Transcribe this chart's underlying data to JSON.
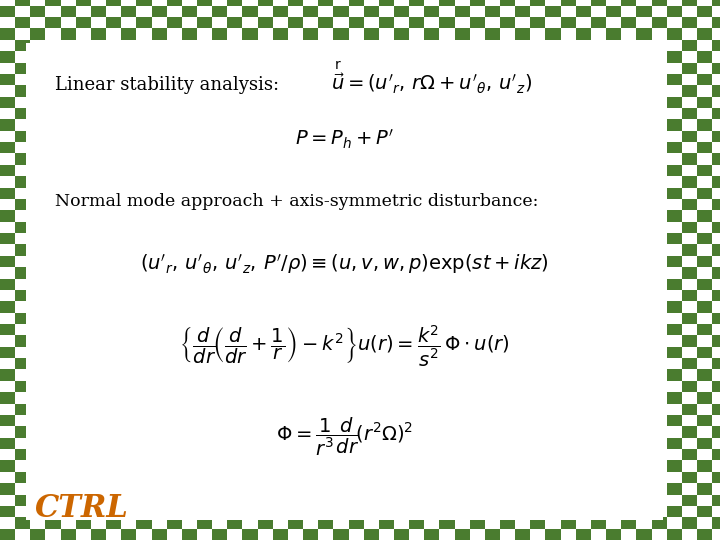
{
  "bg_color": "#ffffff",
  "border_color": "#4a7c2f",
  "title_text": "Linear stability analysis:",
  "subtitle_text": "Normal mode approach + axis-symmetric disturbance:",
  "ctrl_text": "CTRL",
  "ctrl_color": "#cc6600",
  "text_color": "#000000",
  "figsize": [
    7.2,
    5.4
  ],
  "dpi": 100,
  "tile_size": 0.022,
  "border_thickness": 0.038,
  "fs_title": 13,
  "fs_eq": 14,
  "fs_subtitle": 12.5,
  "fs_ctrl": 22
}
